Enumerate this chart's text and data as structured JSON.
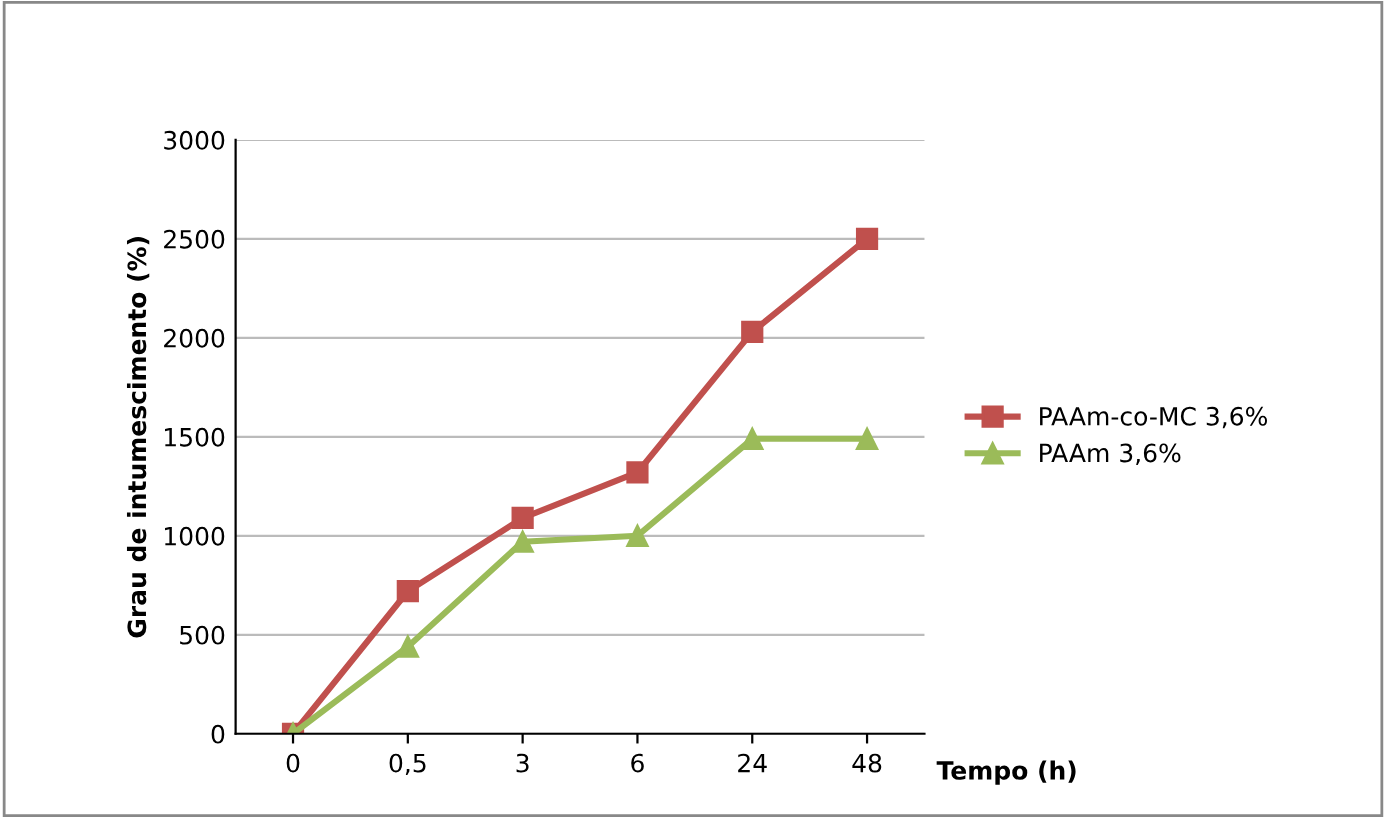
{
  "chart_data": {
    "type": "line",
    "xlabel": "Tempo (h)",
    "ylabel": "Grau de intumescimento (%)",
    "categories": [
      "0",
      "0,5",
      "3",
      "6",
      "24",
      "48"
    ],
    "series": [
      {
        "name": "PAAm-co-MC 3,6%",
        "color": "#c0504d",
        "marker": "square",
        "values": [
          0,
          720,
          1090,
          1320,
          2030,
          2500
        ]
      },
      {
        "name": "PAAm 3,6%",
        "color": "#9bbb59",
        "marker": "triangle",
        "values": [
          0,
          440,
          970,
          1000,
          1490,
          1490
        ]
      }
    ],
    "ylim": [
      0,
      3000
    ],
    "yticks": [
      0,
      500,
      1000,
      1500,
      2000,
      2500,
      3000
    ],
    "grid": "y",
    "legend": "right",
    "line_style": "solid"
  }
}
